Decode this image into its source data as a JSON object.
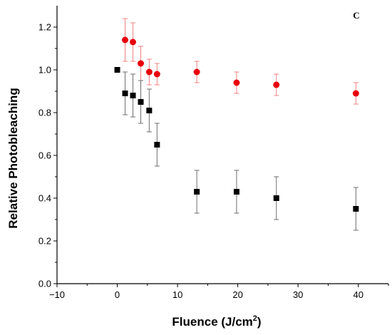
{
  "chart_data": {
    "type": "scatter",
    "title": "",
    "panel_label": "C",
    "xlabel": "Fluence (J/cm",
    "xlabel_superscript": "2",
    "xlabel_suffix": ")",
    "ylabel": "Relative Photobleaching",
    "xlim": [
      -10,
      45
    ],
    "ylim": [
      0.0,
      1.3
    ],
    "x_ticks": [
      -10,
      0,
      10,
      20,
      30,
      40
    ],
    "x_tick_labels": [
      "−10",
      "0",
      "10",
      "20",
      "30",
      "40"
    ],
    "y_ticks": [
      0.0,
      0.2,
      0.4,
      0.6,
      0.8,
      1.0,
      1.2
    ],
    "y_tick_labels": [
      "0.0",
      "0.2",
      "0.4",
      "0.6",
      "0.8",
      "1.0",
      "1.2"
    ],
    "grid": false,
    "legend": "none",
    "series": [
      {
        "marker": "circle",
        "color": "#e8000b",
        "errorbar_color": "#f08080",
        "points": [
          {
            "x": 1.3,
            "y": 1.14,
            "err": 0.1
          },
          {
            "x": 2.6,
            "y": 1.13,
            "err": 0.09
          },
          {
            "x": 3.9,
            "y": 1.03,
            "err": 0.08
          },
          {
            "x": 5.3,
            "y": 0.99,
            "err": 0.06
          },
          {
            "x": 6.6,
            "y": 0.98,
            "err": 0.05
          },
          {
            "x": 13.2,
            "y": 0.99,
            "err": 0.05
          },
          {
            "x": 19.8,
            "y": 0.94,
            "err": 0.05
          },
          {
            "x": 26.4,
            "y": 0.93,
            "err": 0.05
          },
          {
            "x": 39.6,
            "y": 0.89,
            "err": 0.05
          }
        ]
      },
      {
        "marker": "square",
        "color": "#000000",
        "errorbar_color": "#6e6e6e",
        "points": [
          {
            "x": 0.0,
            "y": 1.0,
            "err": 0.0
          },
          {
            "x": 1.3,
            "y": 0.89,
            "err": 0.1
          },
          {
            "x": 2.6,
            "y": 0.88,
            "err": 0.1
          },
          {
            "x": 3.9,
            "y": 0.85,
            "err": 0.1
          },
          {
            "x": 5.3,
            "y": 0.81,
            "err": 0.1
          },
          {
            "x": 6.6,
            "y": 0.65,
            "err": 0.1
          },
          {
            "x": 13.2,
            "y": 0.43,
            "err": 0.1
          },
          {
            "x": 19.8,
            "y": 0.43,
            "err": 0.1
          },
          {
            "x": 26.4,
            "y": 0.4,
            "err": 0.1
          },
          {
            "x": 39.6,
            "y": 0.35,
            "err": 0.1
          }
        ]
      }
    ]
  }
}
